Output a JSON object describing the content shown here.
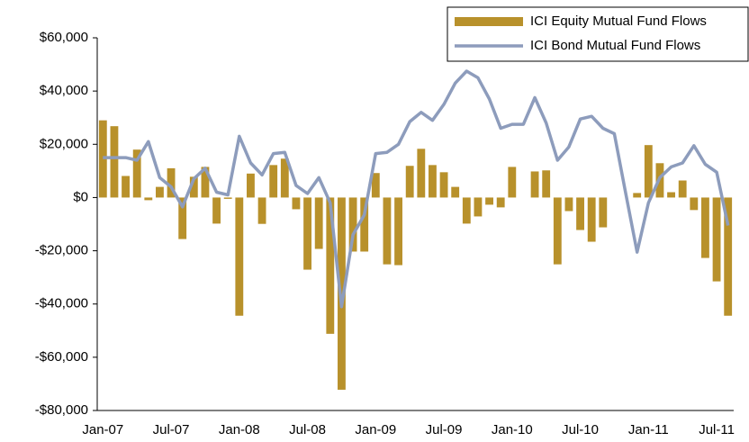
{
  "chart_data": {
    "type": "bar_line",
    "categories": [
      "Jan-07",
      null,
      null,
      null,
      null,
      null,
      "Jul-07",
      null,
      null,
      null,
      null,
      null,
      "Jan-08",
      null,
      null,
      null,
      null,
      null,
      "Jul-08",
      null,
      null,
      null,
      null,
      null,
      "Jan-09",
      null,
      null,
      null,
      null,
      null,
      "Jul-09",
      null,
      null,
      null,
      null,
      null,
      "Jan-10",
      null,
      null,
      null,
      null,
      null,
      "Jul-10",
      null,
      null,
      null,
      null,
      null,
      "Jan-11",
      null,
      null,
      null,
      null,
      null,
      "Jul-11",
      null
    ],
    "series": [
      {
        "name": "ICI Equity Mutual Fund Flows",
        "kind": "bar",
        "color": "#b8912b",
        "values": [
          29000,
          26800,
          8100,
          18000,
          -1000,
          4000,
          11000,
          -15600,
          7800,
          11500,
          -9800,
          -500,
          -44400,
          9000,
          -9900,
          12200,
          14600,
          -4400,
          -27100,
          -19300,
          -51200,
          -72200,
          -20300,
          -20300,
          9200,
          -25100,
          -25400,
          11900,
          18300,
          12200,
          9500,
          4000,
          -9800,
          -7100,
          -2700,
          -3700,
          11500,
          0,
          9800,
          10200,
          -25100,
          -5100,
          -12200,
          -16600,
          -11200,
          0,
          0,
          1700,
          19700,
          12900,
          2000,
          6400,
          -4700,
          -22700,
          -31500,
          -44400
        ]
      },
      {
        "name": "ICI Bond Mutual Fund Flows",
        "kind": "line",
        "color": "#8d9cbc",
        "values": [
          15000,
          15000,
          15000,
          14000,
          21000,
          7500,
          4000,
          -3500,
          7000,
          11000,
          2000,
          1000,
          23000,
          13000,
          8500,
          16500,
          17000,
          4500,
          1500,
          7500,
          -2000,
          -41000,
          -14000,
          -6500,
          16500,
          17000,
          20000,
          28500,
          32000,
          29000,
          35000,
          43000,
          47500,
          45000,
          37000,
          26000,
          27500,
          27500,
          37500,
          28000,
          14000,
          19000,
          29500,
          30500,
          26000,
          24000,
          1500,
          -20500,
          -2000,
          7500,
          11500,
          13000,
          19500,
          12500,
          9500,
          -10500
        ]
      }
    ],
    "ylim": [
      -80000,
      60000
    ],
    "yticks": [
      {
        "value": -80000,
        "label": "-$80,000"
      },
      {
        "value": -60000,
        "label": "-$60,000"
      },
      {
        "value": -40000,
        "label": "-$40,000"
      },
      {
        "value": -20000,
        "label": "-$20,000"
      },
      {
        "value": 0,
        "label": "$0"
      },
      {
        "value": 20000,
        "label": "$20,000"
      },
      {
        "value": 40000,
        "label": "$40,000"
      },
      {
        "value": 60000,
        "label": "$60,000"
      }
    ],
    "legend": "top-right"
  }
}
